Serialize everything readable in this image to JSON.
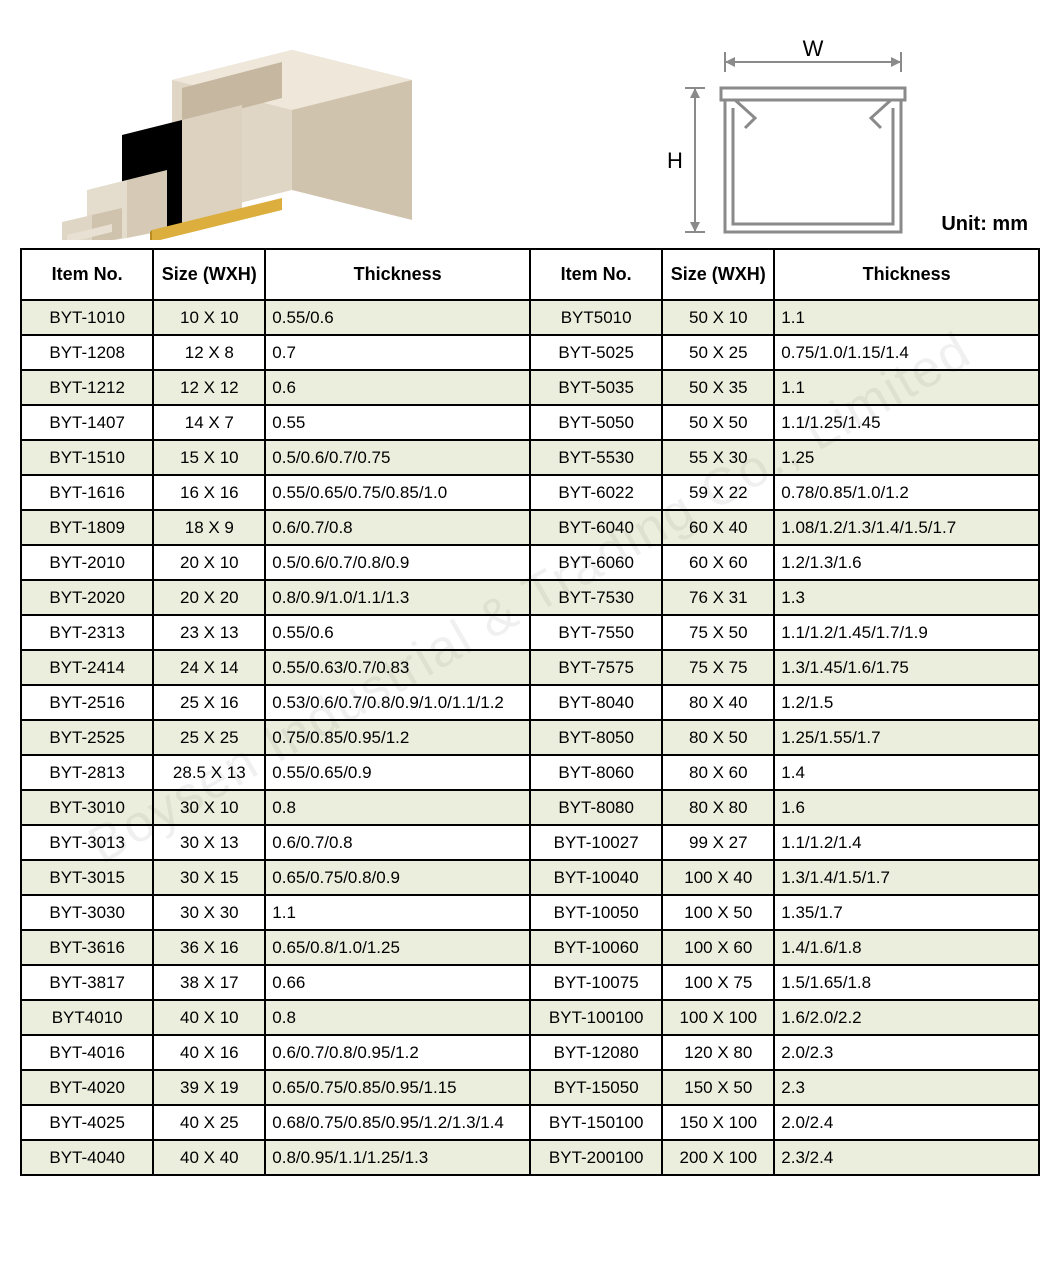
{
  "unit_label": "Unit: mm",
  "diagram": {
    "w_label": "W",
    "h_label": "H",
    "stroke": "#8a8a8a",
    "fill": "#ffffff"
  },
  "watermark_text": "Boysen Industrial & Trading Co., Limited",
  "table": {
    "columns": [
      "Item No.",
      "Size (WXH)",
      "Thickness",
      "Item No.",
      "Size (WXH)",
      "Thickness"
    ],
    "alt_row_bg": "#eceedd",
    "border_color": "#000000",
    "col_pct": [
      13.5,
      10.5,
      26,
      13.5,
      10.5,
      26
    ],
    "rows": [
      [
        "BYT-1010",
        "10 X 10",
        "0.55/0.6",
        "BYT5010",
        "50 X 10",
        "1.1"
      ],
      [
        "BYT-1208",
        "12 X 8",
        "0.7",
        "BYT-5025",
        "50 X 25",
        "0.75/1.0/1.15/1.4"
      ],
      [
        "BYT-1212",
        "12 X 12",
        "0.6",
        "BYT-5035",
        "50 X 35",
        "1.1"
      ],
      [
        "BYT-1407",
        "14 X 7",
        "0.55",
        "BYT-5050",
        "50 X 50",
        "1.1/1.25/1.45"
      ],
      [
        "BYT-1510",
        "15 X 10",
        "0.5/0.6/0.7/0.75",
        "BYT-5530",
        "55 X 30",
        "1.25"
      ],
      [
        "BYT-1616",
        "16 X 16",
        "0.55/0.65/0.75/0.85/1.0",
        "BYT-6022",
        "59 X 22",
        "0.78/0.85/1.0/1.2"
      ],
      [
        "BYT-1809",
        "18 X 9",
        "0.6/0.7/0.8",
        "BYT-6040",
        "60 X 40",
        "1.08/1.2/1.3/1.4/1.5/1.7"
      ],
      [
        "BYT-2010",
        "20 X 10",
        "0.5/0.6/0.7/0.8/0.9",
        "BYT-6060",
        "60 X 60",
        "1.2/1.3/1.6"
      ],
      [
        "BYT-2020",
        "20 X 20",
        "0.8/0.9/1.0/1.1/1.3",
        "BYT-7530",
        "76 X 31",
        "1.3"
      ],
      [
        "BYT-2313",
        "23 X 13",
        "0.55/0.6",
        "BYT-7550",
        "75 X 50",
        "1.1/1.2/1.45/1.7/1.9"
      ],
      [
        "BYT-2414",
        "24 X 14",
        "0.55/0.63/0.7/0.83",
        "BYT-7575",
        "75 X 75",
        "1.3/1.45/1.6/1.75"
      ],
      [
        "BYT-2516",
        "25 X 16",
        "0.53/0.6/0.7/0.8/0.9/1.0/1.1/1.2",
        "BYT-8040",
        "80 X 40",
        "1.2/1.5"
      ],
      [
        "BYT-2525",
        "25 X 25",
        "0.75/0.85/0.95/1.2",
        "BYT-8050",
        "80 X 50",
        "1.25/1.55/1.7"
      ],
      [
        "BYT-2813",
        "28.5 X 13",
        "0.55/0.65/0.9",
        "BYT-8060",
        "80 X 60",
        "1.4"
      ],
      [
        "BYT-3010",
        "30 X 10",
        "0.8",
        "BYT-8080",
        "80 X 80",
        "1.6"
      ],
      [
        "BYT-3013",
        "30 X 13",
        "0.6/0.7/0.8",
        "BYT-10027",
        "99 X 27",
        "1.1/1.2/1.4"
      ],
      [
        "BYT-3015",
        "30 X 15",
        "0.65/0.75/0.8/0.9",
        "BYT-10040",
        "100 X 40",
        "1.3/1.4/1.5/1.7"
      ],
      [
        "BYT-3030",
        "30 X 30",
        "1.1",
        "BYT-10050",
        "100 X 50",
        "1.35/1.7"
      ],
      [
        "BYT-3616",
        "36 X 16",
        "0.65/0.8/1.0/1.25",
        "BYT-10060",
        "100 X 60",
        "1.4/1.6/1.8"
      ],
      [
        "BYT-3817",
        "38 X 17",
        "0.66",
        "BYT-10075",
        "100 X 75",
        "1.5/1.65/1.8"
      ],
      [
        "BYT4010",
        "40 X 10",
        "0.8",
        "BYT-100100",
        "100 X 100",
        "1.6/2.0/2.2"
      ],
      [
        "BYT-4016",
        "40 X 16",
        "0.6/0.7/0.8/0.95/1.2",
        "BYT-12080",
        "120 X 80",
        "2.0/2.3"
      ],
      [
        "BYT-4020",
        "39 X 19",
        "0.65/0.75/0.85/0.95/1.15",
        "BYT-15050",
        "150 X 50",
        "2.3"
      ],
      [
        "BYT-4025",
        "40 X 25",
        "0.68/0.75/0.85/0.95/1.2/1.3/1.4",
        "BYT-150100",
        "150 X 100",
        "2.0/2.4"
      ],
      [
        "BYT-4040",
        "40 X 40",
        "0.8/0.95/1.1/1.25/1.3",
        "BYT-200100",
        "200 X 100",
        "2.3/2.4"
      ]
    ]
  },
  "product_svg": {
    "trunking_fill": "#d8cdbb",
    "trunking_top": "#e8e0d2",
    "trunking_side": "#b8ab95",
    "accent": "#dcae3d"
  }
}
